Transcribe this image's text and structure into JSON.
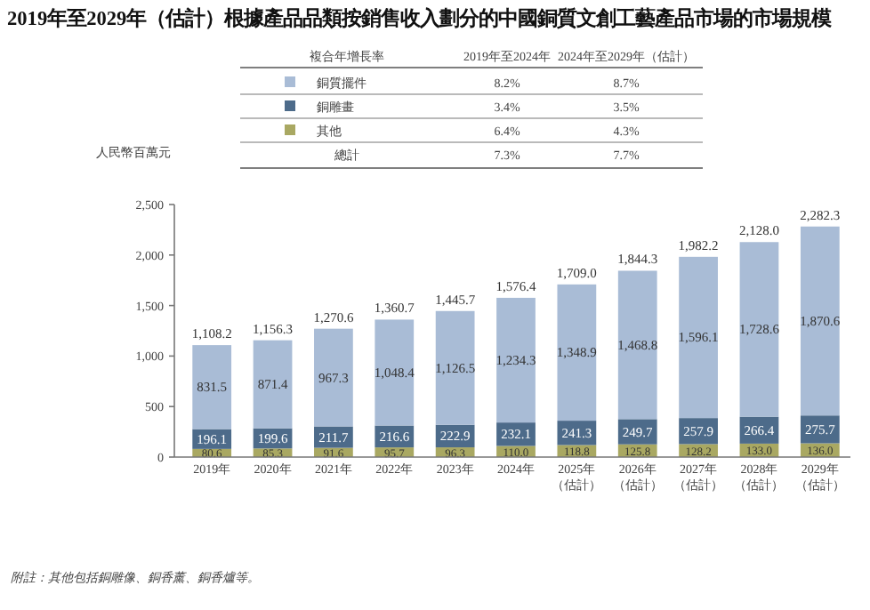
{
  "chart_data": {
    "type": "bar",
    "stacked": true,
    "title": "2019年至2029年（估計）根據產品品類按銷售收入劃分的中國銅質文創工藝產品市場的市場規模",
    "ylabel": "人民幣百萬元",
    "legend": "top",
    "legend_title": "複合年增長率",
    "categories": [
      "2019年",
      "2020年",
      "2021年",
      "2022年",
      "2023年",
      "2024年",
      "2025年（估計）",
      "2026年（估計）",
      "2027年（估計）",
      "2028年（估計）",
      "2029年（估計）"
    ],
    "series": [
      {
        "name": "其他",
        "color": "#a9a862",
        "values": [
          80.6,
          85.3,
          91.6,
          95.7,
          96.3,
          110.0,
          118.8,
          125.8,
          128.2,
          133.0,
          136.0
        ],
        "value_labels": [
          "80.6",
          "85.3",
          "91.6",
          "95.7",
          "96.3",
          "110.0",
          "118.8",
          "125.8",
          "128.2",
          "133.0",
          "136.0"
        ]
      },
      {
        "name": "銅雕畫",
        "color": "#4d6b8a",
        "values": [
          196.1,
          199.6,
          211.7,
          216.6,
          222.9,
          232.1,
          241.3,
          249.7,
          257.9,
          266.4,
          275.7
        ],
        "value_labels": [
          "196.1",
          "199.6",
          "211.7",
          "216.6",
          "222.9",
          "232.1",
          "241.3",
          "249.7",
          "257.9",
          "266.4",
          "275.7"
        ]
      },
      {
        "name": "銅質擺件",
        "color": "#a9bcd6",
        "values": [
          831.5,
          871.4,
          967.3,
          1048.4,
          1126.5,
          1234.3,
          1348.9,
          1468.8,
          1596.1,
          1728.6,
          1870.6
        ],
        "value_labels": [
          "831.5",
          "871.4",
          "967.3",
          "1,048.4",
          "1,126.5",
          "1,234.3",
          "1,348.9",
          "1,468.8",
          "1,596.1",
          "1,728.6",
          "1,870.6"
        ]
      }
    ],
    "totals": [
      "1,108.2",
      "1,156.3",
      "1,270.6",
      "1,360.7",
      "1,445.7",
      "1,576.4",
      "1,709.0",
      "1,844.3",
      "1,982.2",
      "2,128.0",
      "2,282.3"
    ],
    "ylim": [
      0,
      2500
    ],
    "yticks": [
      0,
      500,
      {
        "value": 1000,
        "label": "1,000"
      },
      {
        "value": 1500,
        "label": "1,500"
      },
      {
        "value": 2000,
        "label": "2,000"
      },
      {
        "value": 2500,
        "label": "2,500"
      }
    ],
    "grid": false,
    "annotations": [
      "2019年至2024年",
      "2024年至2029年（估計）",
      "6.4%",
      "4.3%",
      "3.4%",
      "3.5%",
      "8.2%",
      "8.7%",
      "總計",
      "7.3%",
      "7.7%",
      "附註：其他包括銅雕像、銅香薰、銅香爐等。"
    ]
  }
}
